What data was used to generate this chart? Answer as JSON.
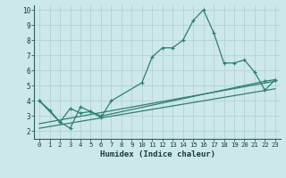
{
  "xlabel": "Humidex (Indice chaleur)",
  "ylabel": "",
  "xlim": [
    -0.5,
    23.5
  ],
  "ylim": [
    1.5,
    10.3
  ],
  "xticks": [
    0,
    1,
    2,
    3,
    4,
    5,
    6,
    7,
    8,
    9,
    10,
    11,
    12,
    13,
    14,
    15,
    16,
    17,
    18,
    19,
    20,
    21,
    22,
    23
  ],
  "yticks": [
    2,
    3,
    4,
    5,
    6,
    7,
    8,
    9,
    10
  ],
  "bg_color": "#cce8e8",
  "grid_color": "#b8d4d4",
  "line_color": "#2e7f6f",
  "series": [
    {
      "x": [
        0,
        1,
        2,
        3,
        4,
        5,
        6,
        7,
        10,
        11,
        12,
        13,
        14,
        15,
        16,
        17,
        18,
        19,
        20,
        21,
        22,
        23
      ],
      "y": [
        4.0,
        3.4,
        2.6,
        2.2,
        3.6,
        3.3,
        2.9,
        4.0,
        5.2,
        6.9,
        7.5,
        7.5,
        8.0,
        9.3,
        10.0,
        8.5,
        6.5,
        6.5,
        6.7,
        5.9,
        4.7,
        5.4
      ],
      "marker": true
    },
    {
      "x": [
        0,
        2,
        3,
        4,
        5,
        6,
        22,
        23
      ],
      "y": [
        4.0,
        2.6,
        3.5,
        3.2,
        3.3,
        3.0,
        5.3,
        5.4
      ],
      "marker": true
    },
    {
      "x": [
        0,
        23
      ],
      "y": [
        2.5,
        5.3
      ],
      "marker": false
    },
    {
      "x": [
        0,
        23
      ],
      "y": [
        2.2,
        4.8
      ],
      "marker": false
    }
  ]
}
